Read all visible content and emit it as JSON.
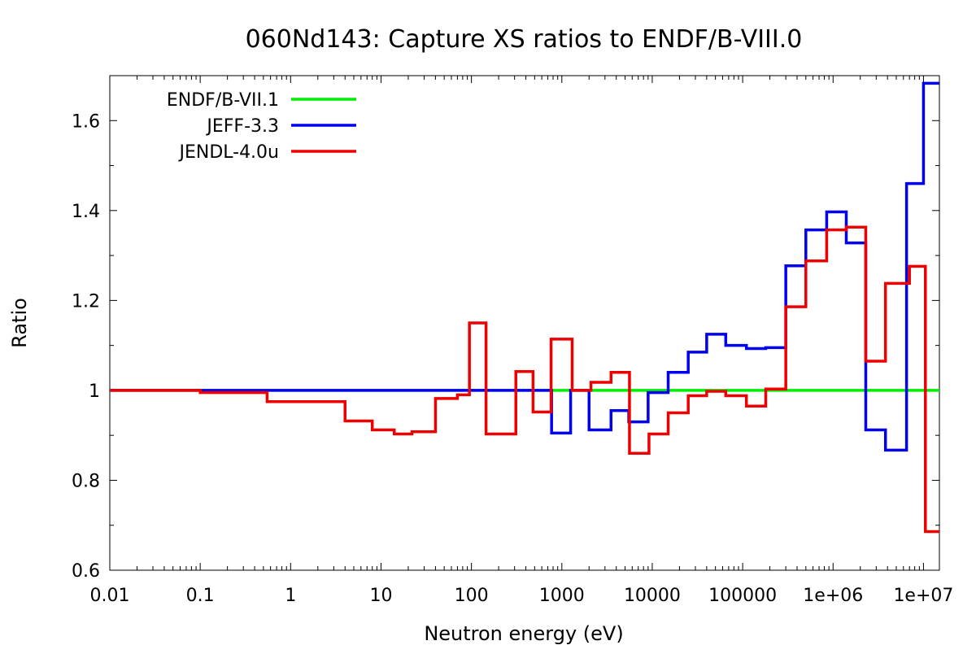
{
  "chart_data": {
    "type": "line",
    "title": "060Nd143: Capture XS ratios to ENDF/B-VIII.0",
    "xlabel": "Neutron energy (eV)",
    "ylabel": "Ratio",
    "xscale": "log",
    "xlim": [
      0.01,
      15000000
    ],
    "ylim": [
      0.6,
      1.7
    ],
    "x_tick_labels": [
      "0.01",
      "0.1",
      "1",
      "10",
      "100",
      "1000",
      "10000",
      "100000",
      "1e+06",
      "1e+07"
    ],
    "x_tick_values": [
      0.01,
      0.1,
      1,
      10,
      100,
      1000,
      10000,
      100000,
      1000000,
      10000000
    ],
    "y_tick_labels": [
      "0.6",
      "0.8",
      "1",
      "1.2",
      "1.4",
      "1.6"
    ],
    "y_tick_values": [
      0.6,
      0.8,
      1.0,
      1.2,
      1.4,
      1.6
    ],
    "grid": false,
    "legend_position": "top-left",
    "series": [
      {
        "name": "ENDF/B-VII.1",
        "color": "#00ee00",
        "step": true,
        "x": [
          0.01,
          15000000
        ],
        "y": [
          1.0,
          1.0
        ]
      },
      {
        "name": "JEFF-3.3",
        "color": "#0000ee",
        "step": true,
        "x": [
          0.01,
          770,
          1250,
          2000,
          3500,
          5500,
          9000,
          15000,
          25000,
          40000,
          65000,
          110000,
          180000,
          300000,
          500000,
          850000,
          1400000,
          2300000,
          3800000,
          6500000,
          10000000,
          15000000
        ],
        "y": [
          1.0,
          0.905,
          1.0,
          0.912,
          0.955,
          0.93,
          0.995,
          1.04,
          1.085,
          1.125,
          1.1,
          1.093,
          1.095,
          1.277,
          1.357,
          1.397,
          1.328,
          0.912,
          0.867,
          1.46,
          1.683,
          1.683
        ]
      },
      {
        "name": "JENDL-4.0u",
        "color": "#ee0000",
        "step": true,
        "x": [
          0.01,
          0.1,
          0.55,
          4,
          8,
          14,
          22,
          40,
          70,
          95,
          145,
          310,
          480,
          760,
          1300,
          2100,
          3500,
          5600,
          9200,
          15000,
          25000,
          40000,
          65000,
          110000,
          180000,
          300000,
          500000,
          850000,
          1400000,
          2300000,
          3800000,
          7000000,
          10500000,
          15000000
        ],
        "y": [
          1.0,
          0.995,
          0.975,
          0.932,
          0.912,
          0.903,
          0.908,
          0.982,
          0.99,
          1.15,
          0.903,
          1.042,
          0.952,
          1.114,
          1.0,
          1.018,
          1.04,
          0.86,
          0.903,
          0.95,
          0.988,
          0.998,
          0.988,
          0.965,
          1.003,
          1.186,
          1.288,
          1.357,
          1.363,
          1.065,
          1.238,
          1.276,
          0.686,
          0.686
        ]
      }
    ]
  }
}
